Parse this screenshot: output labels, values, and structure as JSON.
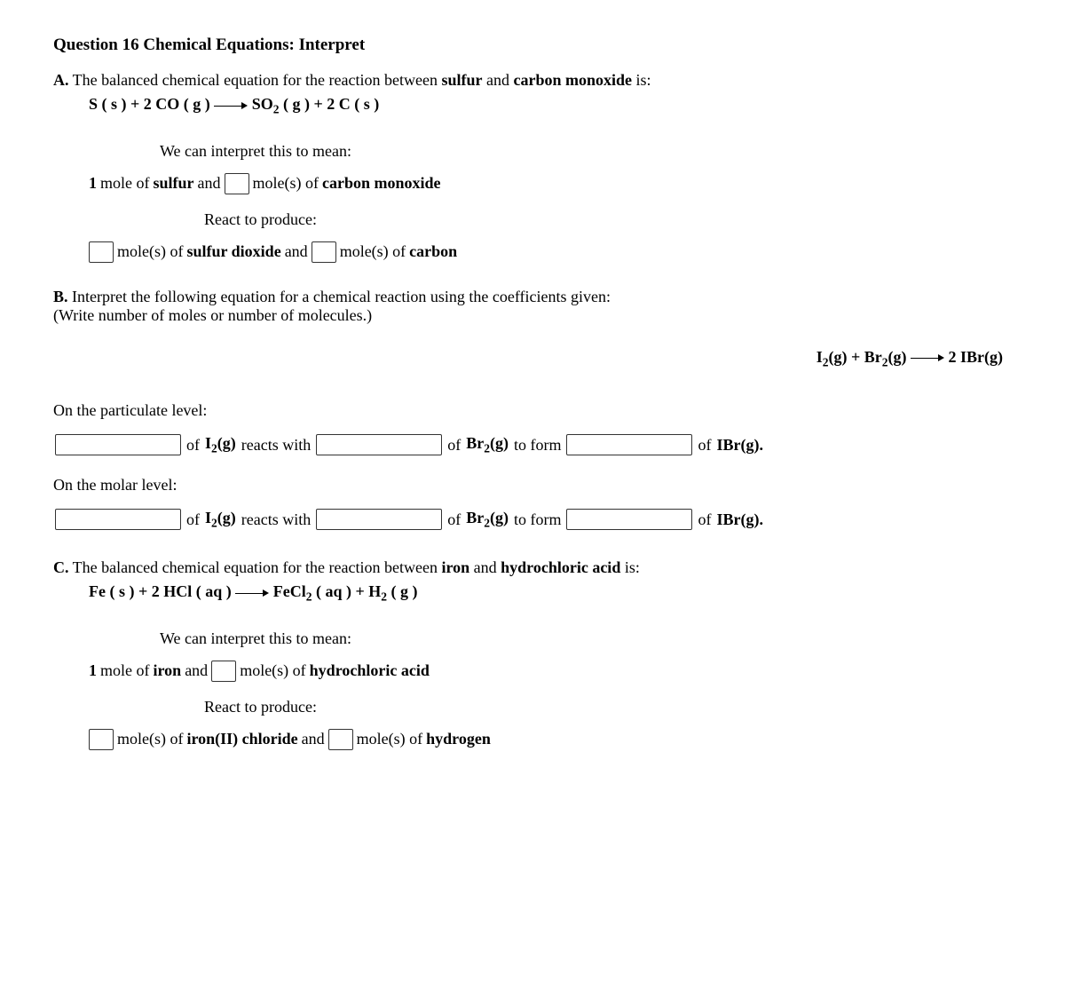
{
  "title": "Question 16 Chemical Equations: Interpret",
  "partA": {
    "label": "A.",
    "intro_pre": " The balanced chemical equation for the reaction between ",
    "reactant1": "sulfur",
    "intro_mid": " and ",
    "reactant2": "carbon monoxide",
    "intro_post": " is:",
    "equation_html": "S ( s ) + 2 CO ( g ) ⟶ SO<sub>2</sub> ( g ) + 2 C ( s )",
    "interpret_lead": "We can interpret this to mean:",
    "line1_pre": "1",
    "line1_mole_of": " mole of ",
    "line1_species1": "sulfur",
    "line1_and": " and ",
    "line1_moles_of": " mole(s) of ",
    "line1_species2": "carbon monoxide",
    "react_lead": "React to produce:",
    "line2_moles_of1": " mole(s) of ",
    "line2_species1": "sulfur dioxide",
    "line2_and": " and ",
    "line2_moles_of2": " mole(s) of ",
    "line2_species2": "carbon"
  },
  "partB": {
    "label": "B.",
    "intro": " Interpret the following equation for a chemical reaction using the coefficients given:",
    "sub_intro": "(Write number of moles or number of molecules.)",
    "equation_html": "I<sub>2</sub>(g) + Br<sub>2</sub>(g) ⟶ 2 IBr(g)",
    "particulate_label": "On the particulate level:",
    "molar_label": "On the molar level:",
    "fill": {
      "of1": " of ",
      "sp1_html": "I<sub>2</sub>(g)",
      "reacts_with": " reacts with ",
      "of2": " of ",
      "sp2_html": "Br<sub>2</sub>(g)",
      "to_form": " to form ",
      "of3": " of ",
      "sp3_html": "IBr(g)."
    }
  },
  "partC": {
    "label": "C.",
    "intro_pre": " The balanced chemical equation for the reaction between ",
    "reactant1": "iron",
    "intro_mid": " and ",
    "reactant2": "hydrochloric acid",
    "intro_post": " is:",
    "equation_html": "Fe ( s ) + 2 HCl ( aq ) ⟶ FeCl<sub>2</sub> ( aq ) + H<sub>2</sub> ( g )",
    "interpret_lead": "We can interpret this to mean:",
    "line1_pre": "1",
    "line1_mole_of": " mole of ",
    "line1_species1": "iron",
    "line1_and": " and ",
    "line1_moles_of": " mole(s) of ",
    "line1_species2": "hydrochloric acid",
    "react_lead": "React to produce:",
    "line2_moles_of1": " mole(s) of ",
    "line2_species1": "iron(II) chloride",
    "line2_and": " and ",
    "line2_moles_of2": " mole(s) of ",
    "line2_species2": "hydrogen"
  }
}
